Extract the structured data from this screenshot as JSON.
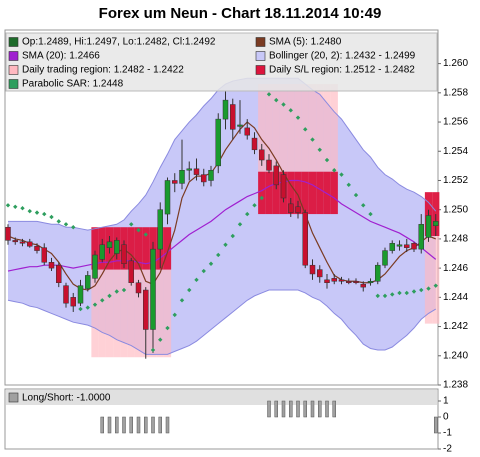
{
  "chart_data": [
    {
      "type": "candlestick",
      "title": "Forex um Neun - Chart 18.11.2014 10:49",
      "ylim": [
        1.238,
        1.2623
      ],
      "yticks": [
        1.238,
        {
          "value": 1.24,
          "label": "1.240"
        },
        1.242,
        1.244,
        1.246,
        1.248,
        {
          "value": 1.25,
          "label": "1.250"
        },
        1.252,
        1.254,
        1.256,
        1.258,
        {
          "value": 1.26,
          "label": "1.260"
        }
      ],
      "ohlc": {
        "name": "Op:1.2489, Hi:1.2497, Lo:1.2482, Cl:1.2492",
        "color": "#1e6b2a",
        "up_color": "#1a9a2e",
        "down_color": "#c8102e",
        "open": [
          1.2488,
          1.2479,
          1.2478,
          1.2478,
          1.2475,
          1.2474,
          1.2464,
          1.2462,
          1.2448,
          1.244,
          1.2436,
          1.2446,
          1.2453,
          1.2466,
          1.2474,
          1.247,
          1.2476,
          1.2465,
          1.245,
          1.2445,
          1.2418,
          1.2473,
          1.2497,
          1.252,
          1.2518,
          1.2527,
          1.2528,
          1.2524,
          1.252,
          1.253,
          1.2562,
          1.2572,
          1.2557,
          1.2556,
          1.2549,
          1.2541,
          1.2534,
          1.253,
          1.2524,
          1.2504,
          1.2502,
          1.2498,
          1.2462,
          1.2459,
          1.2452,
          1.2453,
          1.2452,
          1.2451,
          1.2451,
          1.2449,
          1.245,
          1.2451,
          1.2462,
          1.2472,
          1.2475,
          1.2476,
          1.2477,
          1.2473,
          1.2481,
          1.2489
        ],
        "high": [
          1.249,
          1.2481,
          1.248,
          1.248,
          1.2477,
          1.2477,
          1.2467,
          1.2464,
          1.245,
          1.2443,
          1.2452,
          1.2458,
          1.2472,
          1.248,
          1.2482,
          1.2481,
          1.2479,
          1.2467,
          1.2452,
          1.2447,
          1.2478,
          1.2505,
          1.2522,
          1.2525,
          1.2548,
          1.2533,
          1.2535,
          1.2528,
          1.253,
          1.2566,
          1.2581,
          1.2576,
          1.2575,
          1.2562,
          1.2553,
          1.2545,
          1.2538,
          1.2533,
          1.2527,
          1.2508,
          1.2506,
          1.25,
          1.2466,
          1.2462,
          1.2456,
          1.2456,
          1.2454,
          1.2453,
          1.2453,
          1.2451,
          1.2453,
          1.2464,
          1.2474,
          1.2479,
          1.2479,
          1.248,
          1.2478,
          1.2497,
          1.25,
          1.2497
        ],
        "low": [
          1.2476,
          1.2476,
          1.2475,
          1.2474,
          1.247,
          1.2462,
          1.2458,
          1.2447,
          1.2433,
          1.243,
          1.2434,
          1.2444,
          1.245,
          1.2464,
          1.247,
          1.2466,
          1.246,
          1.2448,
          1.244,
          1.2398,
          1.2402,
          1.246,
          1.249,
          1.2512,
          1.2514,
          1.252,
          1.252,
          1.2516,
          1.2516,
          1.2525,
          1.2555,
          1.2548,
          1.2552,
          1.2548,
          1.2538,
          1.253,
          1.2525,
          1.2514,
          1.2505,
          1.2495,
          1.2494,
          1.246,
          1.2452,
          1.245,
          1.2446,
          1.2449,
          1.2449,
          1.2449,
          1.2449,
          1.2444,
          1.2448,
          1.2449,
          1.246,
          1.247,
          1.2472,
          1.2471,
          1.2471,
          1.247,
          1.2478,
          1.2482
        ],
        "close": [
          1.2479,
          1.2478,
          1.2477,
          1.2475,
          1.2472,
          1.2464,
          1.246,
          1.245,
          1.2436,
          1.2434,
          1.2448,
          1.2455,
          1.2469,
          1.2476,
          1.2478,
          1.2479,
          1.2463,
          1.245,
          1.2443,
          1.2418,
          1.2473,
          1.25,
          1.252,
          1.2518,
          1.2527,
          1.2528,
          1.2524,
          1.2519,
          1.2527,
          1.2562,
          1.2575,
          1.2555,
          1.2558,
          1.2551,
          1.2541,
          1.2534,
          1.2527,
          1.2517,
          1.2508,
          1.2498,
          1.2498,
          1.2462,
          1.2456,
          1.2454,
          1.245,
          1.2451,
          1.2451,
          1.245,
          1.245,
          1.2447,
          1.2451,
          1.2462,
          1.2472,
          1.2477,
          1.2476,
          1.2474,
          1.2473,
          1.249,
          1.2496,
          1.2492
        ]
      },
      "series": [
        {
          "name": "SMA (5): 1.2480",
          "color": "#7a3b22",
          "values": [
            1.2482,
            1.248,
            1.2479,
            1.2477,
            1.2476,
            1.2473,
            1.247,
            1.2464,
            1.2456,
            1.2449,
            1.2446,
            1.2445,
            1.2448,
            1.2456,
            1.2465,
            1.2471,
            1.2473,
            1.2469,
            1.2463,
            1.2451,
            1.2449,
            1.2457,
            1.2471,
            1.2486,
            1.2508,
            1.2519,
            1.2523,
            1.2523,
            1.2525,
            1.2532,
            1.2541,
            1.2548,
            1.2555,
            1.256,
            1.2556,
            1.2548,
            1.2542,
            1.2534,
            1.2525,
            1.2517,
            1.251,
            1.2497,
            1.2484,
            1.2474,
            1.2464,
            1.2455,
            1.2452,
            1.2451,
            1.2451,
            1.245,
            1.245,
            1.2452,
            1.2456,
            1.2462,
            1.2468,
            1.2472,
            1.2474,
            1.2478,
            1.2482,
            1.248
          ]
        },
        {
          "name": "SMA (20): 1.2466",
          "color": "#a020d0",
          "values": [
            1.2458,
            1.2459,
            1.246,
            1.2461,
            1.2461,
            1.2462,
            1.2462,
            1.2462,
            1.2461,
            1.246,
            1.2461,
            1.2462,
            1.2463,
            1.2464,
            1.2464,
            1.2465,
            1.2465,
            1.2465,
            1.2464,
            1.2463,
            1.2464,
            1.2467,
            1.2471,
            1.2475,
            1.2479,
            1.2483,
            1.2486,
            1.2489,
            1.2492,
            1.2496,
            1.25,
            1.2503,
            1.2506,
            1.2509,
            1.2511,
            1.2513,
            1.2516,
            1.2518,
            1.2519,
            1.252,
            1.252,
            1.2519,
            1.2517,
            1.2514,
            1.2511,
            1.2508,
            1.2504,
            1.2501,
            1.2498,
            1.2495,
            1.2492,
            1.249,
            1.2488,
            1.2486,
            1.2484,
            1.2481,
            1.2478,
            1.2474,
            1.247,
            1.2466
          ]
        }
      ],
      "band": {
        "name": "Bollinger (20, 2): 1.2432 - 1.2499",
        "color": "#c8c8f8",
        "line_color": "#8a8ae0",
        "upper": [
          1.2492,
          1.2492,
          1.2492,
          1.2492,
          1.2492,
          1.2491,
          1.249,
          1.249,
          1.2488,
          1.2488,
          1.2487,
          1.2486,
          1.2487,
          1.2488,
          1.2489,
          1.249,
          1.2493,
          1.2499,
          1.2504,
          1.251,
          1.2519,
          1.2529,
          1.2538,
          1.2548,
          1.2554,
          1.256,
          1.2565,
          1.2571,
          1.2576,
          1.2582,
          1.2586,
          1.2588,
          1.2589,
          1.259,
          1.259,
          1.259,
          1.259,
          1.259,
          1.259,
          1.259,
          1.259,
          1.2586,
          1.2582,
          1.2579,
          1.2573,
          1.2567,
          1.2562,
          1.2555,
          1.2548,
          1.2541,
          1.2536,
          1.2529,
          1.2524,
          1.2521,
          1.2517,
          1.2514,
          1.2512,
          1.2509,
          1.2505,
          1.2499
        ],
        "lower": [
          1.2438,
          1.2437,
          1.2436,
          1.2434,
          1.2433,
          1.2431,
          1.2429,
          1.2427,
          1.2425,
          1.2423,
          1.2422,
          1.2421,
          1.2419,
          1.2416,
          1.2414,
          1.2411,
          1.2409,
          1.2407,
          1.2404,
          1.2401,
          1.2401,
          1.2401,
          1.2401,
          1.2403,
          1.2405,
          1.2407,
          1.241,
          1.2414,
          1.2418,
          1.2422,
          1.2426,
          1.243,
          1.2434,
          1.2438,
          1.2441,
          1.2443,
          1.2445,
          1.2445,
          1.2445,
          1.2445,
          1.2445,
          1.2443,
          1.244,
          1.2438,
          1.2434,
          1.2429,
          1.2425,
          1.2419,
          1.2414,
          1.2408,
          1.2405,
          1.2404,
          1.2404,
          1.2406,
          1.241,
          1.2414,
          1.2419,
          1.2425,
          1.2429,
          1.2432
        ]
      },
      "regions": [
        {
          "name": "Daily trading region: 1.2482 - 1.2422",
          "color": "#ffb8c0",
          "high": [
            null,
            null,
            null,
            null,
            null,
            null,
            null,
            null,
            null,
            null,
            null,
            null,
            1.2459,
            1.2459,
            1.2459,
            1.2459,
            1.2459,
            1.2459,
            1.2459,
            1.2459,
            1.2459,
            1.2459,
            1.2459,
            null,
            null,
            null,
            null,
            null,
            null,
            null,
            null,
            null,
            null,
            null,
            null,
            1.2586,
            1.2586,
            1.2586,
            1.2586,
            1.2586,
            1.2586,
            1.2586,
            1.2586,
            1.2586,
            1.2586,
            1.2586,
            null,
            null,
            null,
            null,
            null,
            null,
            null,
            null,
            null,
            null,
            null,
            null,
            1.2482,
            1.2482
          ],
          "low": [
            null,
            null,
            null,
            null,
            null,
            null,
            null,
            null,
            null,
            null,
            null,
            null,
            1.2399,
            1.2399,
            1.2399,
            1.2399,
            1.2399,
            1.2399,
            1.2399,
            1.2399,
            1.2399,
            1.2399,
            1.2399,
            null,
            null,
            null,
            null,
            null,
            null,
            null,
            null,
            null,
            null,
            null,
            null,
            1.2526,
            1.2526,
            1.2526,
            1.2526,
            1.2526,
            1.2526,
            1.2526,
            1.2526,
            1.2526,
            1.2526,
            1.2526,
            null,
            null,
            null,
            null,
            null,
            null,
            null,
            null,
            null,
            null,
            null,
            null,
            1.2422,
            1.2422
          ]
        },
        {
          "name": "Daily S/L region: 1.2512 - 1.2482",
          "color": "#dc143c",
          "high": [
            null,
            null,
            null,
            null,
            null,
            null,
            null,
            null,
            null,
            null,
            null,
            null,
            1.2488,
            1.2488,
            1.2488,
            1.2488,
            1.2488,
            1.2488,
            1.2488,
            1.2488,
            1.2488,
            1.2488,
            1.2488,
            null,
            null,
            null,
            null,
            null,
            null,
            null,
            null,
            null,
            null,
            null,
            null,
            1.2526,
            1.2526,
            1.2526,
            1.2526,
            1.2526,
            1.2526,
            1.2526,
            1.2526,
            1.2526,
            1.2526,
            1.2526,
            null,
            null,
            null,
            null,
            null,
            null,
            null,
            null,
            null,
            null,
            null,
            null,
            1.2512,
            1.2512
          ],
          "low": [
            null,
            null,
            null,
            null,
            null,
            null,
            null,
            null,
            null,
            null,
            null,
            null,
            1.2459,
            1.2459,
            1.2459,
            1.2459,
            1.2459,
            1.2459,
            1.2459,
            1.2459,
            1.2459,
            1.2459,
            1.2459,
            null,
            null,
            null,
            null,
            null,
            null,
            null,
            null,
            null,
            null,
            null,
            null,
            1.2497,
            1.2497,
            1.2497,
            1.2497,
            1.2497,
            1.2497,
            1.2497,
            1.2497,
            1.2497,
            1.2497,
            1.2497,
            null,
            null,
            null,
            null,
            null,
            null,
            null,
            null,
            null,
            null,
            null,
            null,
            1.2482,
            1.2482
          ]
        }
      ],
      "sar": {
        "name": "Parabolic SAR: 1.2448",
        "color": "#2e9e5e",
        "values": [
          1.2503,
          1.2502,
          1.2501,
          1.2499,
          1.2498,
          1.2497,
          1.2495,
          1.2492,
          1.249,
          1.2488,
          1.2432,
          1.2433,
          1.2435,
          1.2438,
          1.2441,
          1.2444,
          1.2445,
          1.249,
          1.2486,
          1.2483,
          1.2404,
          1.2411,
          1.2419,
          1.2428,
          1.2438,
          1.2445,
          1.2452,
          1.2458,
          1.2463,
          1.2469,
          1.2476,
          1.2482,
          1.249,
          1.2497,
          1.2503,
          1.2508,
          1.2579,
          1.2575,
          1.2572,
          1.2568,
          1.2563,
          1.2555,
          1.2548,
          1.2541,
          1.2534,
          1.2527,
          1.2524,
          1.2517,
          1.251,
          1.2503,
          1.2497,
          1.2441,
          1.2441,
          1.2442,
          1.2443,
          1.2443,
          1.2444,
          1.2445,
          1.2446,
          1.2448
        ]
      }
    },
    {
      "type": "bar",
      "series": [
        {
          "name": "Long/Short: -1.0000",
          "color": "#a0a0a0",
          "values": [
            0,
            0,
            0,
            0,
            0,
            0,
            0,
            0,
            0,
            0,
            0,
            0,
            0,
            -1,
            -1,
            -1,
            -1,
            -1,
            -1,
            -1,
            -1,
            -1,
            -1,
            0,
            0,
            0,
            0,
            0,
            0,
            0,
            0,
            0,
            0,
            0,
            0,
            0,
            1,
            1,
            1,
            1,
            1,
            1,
            1,
            1,
            1,
            1,
            0,
            0,
            0,
            0,
            0,
            0,
            0,
            0,
            0,
            0,
            0,
            0,
            0,
            -1
          ]
        }
      ],
      "ylim": [
        -2,
        1.75
      ],
      "yticks": [
        1,
        0,
        -1,
        -2
      ]
    }
  ]
}
